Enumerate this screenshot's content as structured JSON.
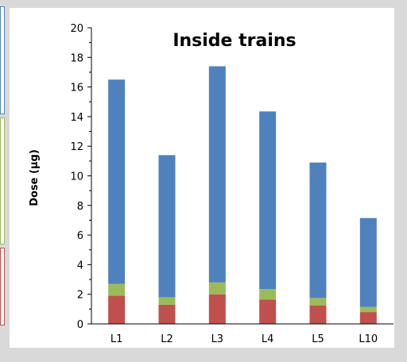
{
  "chart_data": {
    "type": "bar",
    "stacked": true,
    "title": "Inside trains",
    "xlabel": "",
    "ylabel": "Dose (µg)",
    "ylim": [
      0,
      20
    ],
    "yticks": [
      0,
      2,
      4,
      6,
      8,
      10,
      12,
      14,
      16,
      18,
      20
    ],
    "categories": [
      "L1",
      "L2",
      "L3",
      "L4",
      "L5",
      "L10"
    ],
    "series": [
      {
        "color": "#c0504d",
        "values": [
          1.9,
          1.3,
          2.0,
          1.65,
          1.25,
          0.8
        ]
      },
      {
        "color": "#9bbb59",
        "values": [
          0.8,
          0.5,
          0.8,
          0.7,
          0.5,
          0.35
        ]
      },
      {
        "color": "#4f81bd",
        "values": [
          13.8,
          9.6,
          14.6,
          12.0,
          9.15,
          6.0
        ]
      }
    ],
    "grid": false,
    "legend": "none"
  }
}
